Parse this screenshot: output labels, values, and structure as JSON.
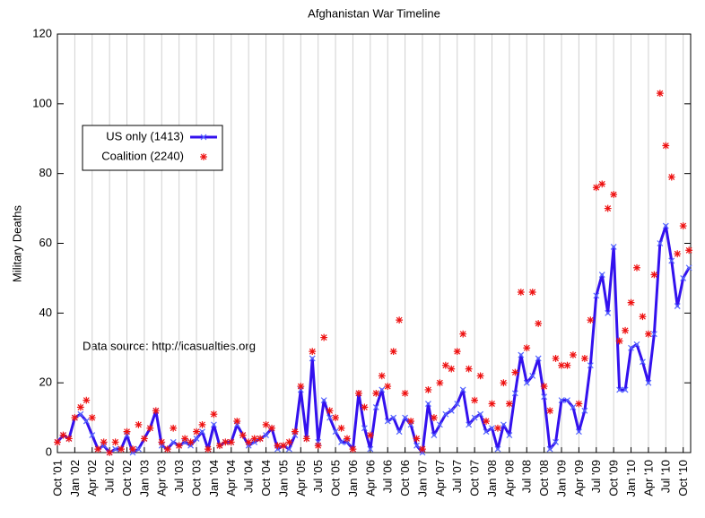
{
  "chart_data": {
    "type": "line",
    "title": "Afghanistan War Timeline",
    "y_label": "Military Deaths",
    "annotation": "Data source: http://icasualties.org",
    "categories": [
      "Oct '01",
      null,
      null,
      "Jan '02",
      null,
      null,
      "Apr '02",
      null,
      null,
      "Jul '02",
      null,
      null,
      "Oct '02",
      null,
      null,
      "Jan '03",
      null,
      null,
      "Apr '03",
      null,
      null,
      "Jul '03",
      null,
      null,
      "Oct '03",
      null,
      null,
      "Jan '04",
      null,
      null,
      "Apr '04",
      null,
      null,
      "Jul '04",
      null,
      null,
      "Oct '04",
      null,
      null,
      "Jan '05",
      null,
      null,
      "Apr '05",
      null,
      null,
      "Jul '05",
      null,
      null,
      "Oct '05",
      null,
      null,
      "Jan '06",
      null,
      null,
      "Apr '06",
      null,
      null,
      "Jul '06",
      null,
      null,
      "Oct '06",
      null,
      null,
      "Jan '07",
      null,
      null,
      "Apr '07",
      null,
      null,
      "Jul '07",
      null,
      null,
      "Oct '07",
      null,
      null,
      "Jan '08",
      null,
      null,
      "Apr '08",
      null,
      null,
      "Jul '08",
      null,
      null,
      "Oct '08",
      null,
      null,
      "Jan '09",
      null,
      null,
      "Apr '09",
      null,
      null,
      "Jul '09",
      null,
      null,
      "Oct '09",
      null,
      null,
      "Jan '10",
      null,
      null,
      "Apr '10",
      null,
      null,
      "Jul '10",
      null,
      null,
      "Oct '10",
      null
    ],
    "series": [
      {
        "name": "US only (1413)",
        "color": "#3311ee",
        "line": true,
        "marker": "x",
        "values": [
          3,
          5,
          4,
          10,
          11,
          9,
          5,
          1,
          2,
          0,
          1,
          1,
          5,
          0,
          1,
          4,
          7,
          12,
          2,
          1,
          3,
          2,
          3,
          2,
          4,
          6,
          1,
          8,
          2,
          3,
          3,
          8,
          5,
          2,
          3,
          4,
          5,
          7,
          1,
          2,
          1,
          5,
          18,
          4,
          27,
          3,
          15,
          10,
          6,
          3,
          3,
          1,
          17,
          7,
          1,
          13,
          18,
          9,
          10,
          6,
          10,
          8,
          2,
          0,
          14,
          5,
          8,
          11,
          12,
          14,
          18,
          8,
          10,
          11,
          6,
          7,
          1,
          8,
          5,
          17,
          28,
          20,
          22,
          27,
          16,
          1,
          3,
          15,
          15,
          13,
          6,
          12,
          25,
          45,
          51,
          40,
          59,
          18,
          18,
          30,
          31,
          26,
          20,
          34,
          60,
          65,
          55,
          42,
          50,
          53
        ]
      },
      {
        "name": "Coalition (2240)",
        "color": "#ee1111",
        "line": false,
        "marker": "asterisk",
        "values": [
          3,
          5,
          4,
          10,
          13,
          15,
          10,
          1,
          3,
          0,
          3,
          1,
          6,
          1,
          8,
          4,
          7,
          12,
          3,
          1,
          7,
          2,
          4,
          3,
          6,
          8,
          1,
          11,
          2,
          3,
          3,
          9,
          5,
          3,
          4,
          4,
          8,
          7,
          2,
          2,
          3,
          6,
          19,
          4,
          29,
          2,
          33,
          12,
          10,
          7,
          4,
          1,
          17,
          13,
          5,
          17,
          22,
          19,
          29,
          38,
          17,
          9,
          4,
          1,
          18,
          10,
          20,
          25,
          24,
          29,
          34,
          24,
          15,
          22,
          9,
          14,
          7,
          20,
          14,
          23,
          46,
          30,
          46,
          37,
          19,
          12,
          27,
          25,
          25,
          28,
          14,
          27,
          38,
          76,
          77,
          70,
          74,
          32,
          35,
          43,
          53,
          39,
          34,
          51,
          103,
          88,
          79,
          57,
          65,
          58
        ]
      }
    ],
    "ylim": [
      0,
      120
    ],
    "yticks": [
      0,
      20,
      40,
      60,
      80,
      100,
      120
    ],
    "grid": "x",
    "legend": "upper left"
  }
}
